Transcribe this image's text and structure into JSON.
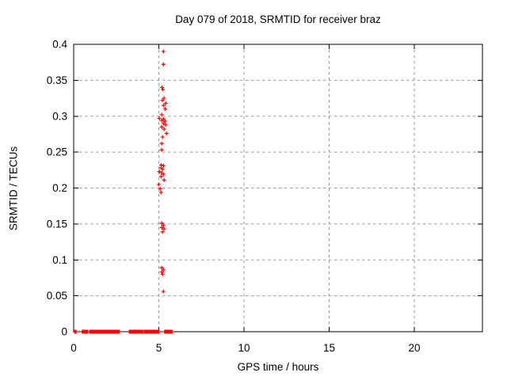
{
  "chart_data": {
    "type": "scatter",
    "title": "Day 079 of 2018, SRMTID for receiver braz",
    "xlabel": "GPS time / hours",
    "ylabel": "SRMTID / TECUs",
    "xlim": [
      0,
      24
    ],
    "ylim": [
      0,
      0.4
    ],
    "x_tick_values": [
      0,
      5,
      10,
      15,
      20
    ],
    "x_tick_labels": [
      "0",
      "5",
      "10",
      "15",
      "20"
    ],
    "y_tick_values": [
      0,
      0.05,
      0.1,
      0.15,
      0.2,
      0.25,
      0.3,
      0.35,
      0.4
    ],
    "y_tick_labels": [
      "0",
      "0.05",
      "0.1",
      "0.15",
      "0.2",
      "0.25",
      "0.3",
      "0.35",
      "0.4"
    ],
    "grid": true,
    "legend": "none",
    "marker": "plus",
    "marker_color": "#ff0000",
    "grid_color": "#9b9b9b",
    "axis_color": "#000000",
    "series": [
      {
        "name": "srmtid-cluster",
        "points": [
          [
            5.27,
            0.39
          ],
          [
            5.27,
            0.372
          ],
          [
            5.19,
            0.34
          ],
          [
            5.24,
            0.337
          ],
          [
            5.3,
            0.325
          ],
          [
            5.21,
            0.322
          ],
          [
            5.41,
            0.318
          ],
          [
            5.28,
            0.315
          ],
          [
            5.37,
            0.31
          ],
          [
            5.17,
            0.302
          ],
          [
            5.03,
            0.297
          ],
          [
            5.27,
            0.296
          ],
          [
            5.17,
            0.294
          ],
          [
            5.36,
            0.293
          ],
          [
            5.27,
            0.29
          ],
          [
            5.41,
            0.288
          ],
          [
            5.17,
            0.285
          ],
          [
            5.31,
            0.282
          ],
          [
            5.45,
            0.276
          ],
          [
            5.22,
            0.271
          ],
          [
            5.17,
            0.262
          ],
          [
            5.17,
            0.253
          ],
          [
            5.13,
            0.232
          ],
          [
            5.27,
            0.231
          ],
          [
            5.13,
            0.228
          ],
          [
            5.22,
            0.226
          ],
          [
            5.03,
            0.223
          ],
          [
            5.17,
            0.221
          ],
          [
            5.27,
            0.219
          ],
          [
            5.13,
            0.216
          ],
          [
            5.31,
            0.211
          ],
          [
            4.99,
            0.205
          ],
          [
            5.08,
            0.199
          ],
          [
            5.13,
            0.194
          ],
          [
            5.17,
            0.151
          ],
          [
            5.27,
            0.148
          ],
          [
            5.17,
            0.145
          ],
          [
            5.31,
            0.143
          ],
          [
            5.22,
            0.139
          ],
          [
            5.17,
            0.089
          ],
          [
            5.27,
            0.086
          ],
          [
            5.17,
            0.083
          ],
          [
            5.22,
            0.08
          ],
          [
            5.27,
            0.056
          ]
        ]
      },
      {
        "name": "srmtid-zero-band",
        "y": 0,
        "x_segments": [
          [
            0.06,
            0.16
          ],
          [
            0.5,
            0.84
          ],
          [
            0.94,
            2.14
          ],
          [
            2.2,
            2.7
          ],
          [
            3.26,
            4.08
          ],
          [
            4.14,
            4.3
          ],
          [
            4.34,
            4.44
          ],
          [
            4.48,
            5.02
          ],
          [
            5.34,
            5.78
          ]
        ],
        "point_spacing_hours": 0.04
      }
    ]
  }
}
